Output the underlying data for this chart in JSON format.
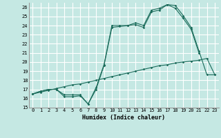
{
  "xlabel": "Humidex (Indice chaleur)",
  "xlim": [
    -0.5,
    23.5
  ],
  "ylim": [
    15,
    26.5
  ],
  "yticks": [
    15,
    16,
    17,
    18,
    19,
    20,
    21,
    22,
    23,
    24,
    25,
    26
  ],
  "xticks": [
    0,
    1,
    2,
    3,
    4,
    5,
    6,
    7,
    8,
    9,
    10,
    11,
    12,
    13,
    14,
    15,
    16,
    17,
    18,
    19,
    20,
    21,
    22,
    23
  ],
  "background_color": "#c5e8e3",
  "grid_color": "#ffffff",
  "line_color": "#1a6b5a",
  "line1_x": [
    0,
    1,
    2,
    3,
    4,
    5,
    6,
    7,
    8,
    9,
    10,
    11,
    12,
    13,
    14,
    15,
    16,
    17,
    18,
    19,
    20,
    21
  ],
  "line1_y": [
    16.5,
    16.8,
    17.0,
    17.0,
    16.2,
    16.2,
    16.3,
    15.4,
    17.0,
    19.6,
    23.8,
    23.9,
    24.0,
    24.1,
    23.8,
    25.5,
    25.7,
    26.3,
    25.9,
    24.8,
    23.6,
    21.0
  ],
  "line2_x": [
    0,
    1,
    2,
    3,
    4,
    5,
    6,
    7,
    8,
    9,
    10,
    11,
    12,
    13,
    14,
    15,
    16,
    17,
    18,
    19,
    20,
    21,
    22,
    23
  ],
  "line2_y": [
    16.5,
    16.8,
    17.0,
    17.0,
    16.4,
    16.4,
    16.4,
    15.4,
    17.2,
    19.7,
    24.0,
    24.0,
    24.0,
    24.3,
    24.0,
    25.7,
    25.9,
    26.3,
    26.2,
    25.1,
    23.8,
    21.2,
    18.6,
    18.6
  ],
  "line3_x": [
    0,
    1,
    2,
    3,
    4,
    5,
    6,
    7,
    8,
    9,
    10,
    11,
    12,
    13,
    14,
    15,
    16,
    17,
    18,
    19,
    20,
    21,
    22,
    23
  ],
  "line3_y": [
    16.5,
    16.7,
    16.9,
    17.1,
    17.3,
    17.5,
    17.6,
    17.8,
    18.0,
    18.2,
    18.4,
    18.6,
    18.8,
    19.0,
    19.2,
    19.4,
    19.6,
    19.7,
    19.9,
    20.0,
    20.1,
    20.2,
    20.4,
    18.6
  ]
}
